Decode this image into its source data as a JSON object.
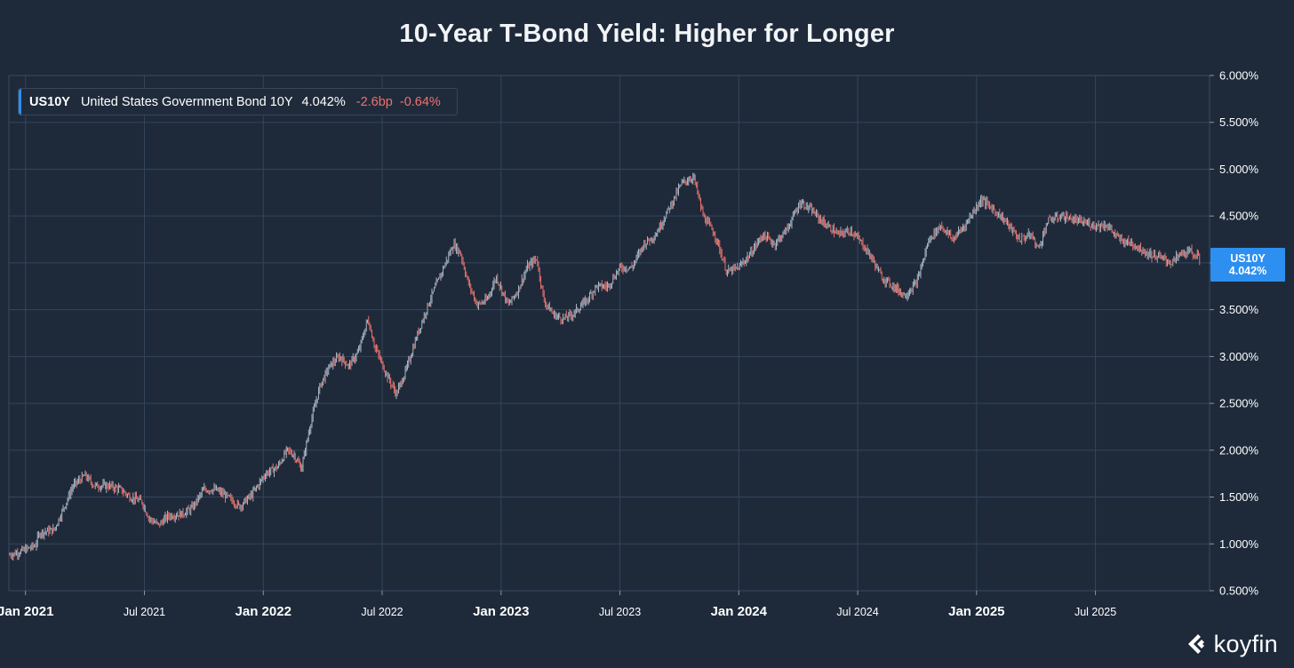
{
  "title": "10-Year T-Bond Yield: Higher for Longer",
  "legend": {
    "symbol": "US10Y",
    "name": "United States Government Bond 10Y",
    "value": "4.042%",
    "change_bp": "-2.6bp",
    "change_pct": "-0.64%"
  },
  "current": {
    "symbol": "US10Y",
    "value": "4.042%"
  },
  "brand": "koyfin",
  "colors": {
    "background": "#1e2a3a",
    "grid": "#33455c",
    "down": "#e4716d",
    "up": "#a6b3c1",
    "accent": "#2d8ff0",
    "negative_text": "#f07070"
  },
  "chart_data": {
    "type": "line",
    "title": "10-Year T-Bond Yield: Higher for Longer",
    "series_name": "US10Y",
    "xlabel": "",
    "ylabel": "",
    "ylim": [
      0.5,
      6.0
    ],
    "yticks": [
      {
        "value": 6.0,
        "label": "6.000%"
      },
      {
        "value": 5.5,
        "label": "5.500%"
      },
      {
        "value": 5.0,
        "label": "5.000%"
      },
      {
        "value": 4.5,
        "label": "4.500%"
      },
      {
        "value": 4.0,
        "label": "4.000%"
      },
      {
        "value": 3.5,
        "label": "3.500%"
      },
      {
        "value": 3.0,
        "label": "3.000%"
      },
      {
        "value": 2.5,
        "label": "2.500%"
      },
      {
        "value": 2.0,
        "label": "2.000%"
      },
      {
        "value": 1.5,
        "label": "1.500%"
      },
      {
        "value": 1.0,
        "label": "1.000%"
      },
      {
        "value": 0.5,
        "label": "0.500%"
      }
    ],
    "xlim": [
      2020.93,
      2025.98
    ],
    "xticks": [
      {
        "t": 2021.0,
        "label": "Jan 2021",
        "major": true
      },
      {
        "t": 2021.5,
        "label": "Jul 2021",
        "major": false
      },
      {
        "t": 2022.0,
        "label": "Jan 2022",
        "major": true
      },
      {
        "t": 2022.5,
        "label": "Jul 2022",
        "major": false
      },
      {
        "t": 2023.0,
        "label": "Jan 2023",
        "major": true
      },
      {
        "t": 2023.5,
        "label": "Jul 2023",
        "major": false
      },
      {
        "t": 2024.0,
        "label": "Jan 2024",
        "major": true
      },
      {
        "t": 2024.5,
        "label": "Jul 2024",
        "major": false
      },
      {
        "t": 2025.0,
        "label": "Jan 2025",
        "major": true
      },
      {
        "t": 2025.5,
        "label": "Jul 2025",
        "major": false
      }
    ],
    "points": [
      [
        2020.93,
        0.88
      ],
      [
        2020.98,
        0.92
      ],
      [
        2021.04,
        0.98
      ],
      [
        2021.06,
        1.12
      ],
      [
        2021.12,
        1.15
      ],
      [
        2021.16,
        1.38
      ],
      [
        2021.2,
        1.62
      ],
      [
        2021.25,
        1.73
      ],
      [
        2021.29,
        1.62
      ],
      [
        2021.35,
        1.62
      ],
      [
        2021.4,
        1.58
      ],
      [
        2021.44,
        1.5
      ],
      [
        2021.49,
        1.45
      ],
      [
        2021.52,
        1.27
      ],
      [
        2021.56,
        1.2
      ],
      [
        2021.6,
        1.3
      ],
      [
        2021.66,
        1.32
      ],
      [
        2021.7,
        1.38
      ],
      [
        2021.75,
        1.58
      ],
      [
        2021.8,
        1.58
      ],
      [
        2021.85,
        1.5
      ],
      [
        2021.9,
        1.4
      ],
      [
        2021.95,
        1.52
      ],
      [
        2022.01,
        1.75
      ],
      [
        2022.06,
        1.82
      ],
      [
        2022.1,
        2.0
      ],
      [
        2022.13,
        1.95
      ],
      [
        2022.16,
        1.8
      ],
      [
        2022.2,
        2.3
      ],
      [
        2022.24,
        2.7
      ],
      [
        2022.28,
        2.9
      ],
      [
        2022.32,
        3.0
      ],
      [
        2022.36,
        2.9
      ],
      [
        2022.4,
        3.05
      ],
      [
        2022.44,
        3.4
      ],
      [
        2022.47,
        3.1
      ],
      [
        2022.52,
        2.8
      ],
      [
        2022.56,
        2.6
      ],
      [
        2022.6,
        2.85
      ],
      [
        2022.65,
        3.25
      ],
      [
        2022.7,
        3.6
      ],
      [
        2022.75,
        3.9
      ],
      [
        2022.8,
        4.2
      ],
      [
        2022.83,
        4.1
      ],
      [
        2022.86,
        3.8
      ],
      [
        2022.9,
        3.55
      ],
      [
        2022.94,
        3.6
      ],
      [
        2022.98,
        3.85
      ],
      [
        2023.03,
        3.55
      ],
      [
        2023.07,
        3.7
      ],
      [
        2023.11,
        3.95
      ],
      [
        2023.15,
        4.05
      ],
      [
        2023.18,
        3.6
      ],
      [
        2023.22,
        3.45
      ],
      [
        2023.26,
        3.4
      ],
      [
        2023.3,
        3.45
      ],
      [
        2023.36,
        3.6
      ],
      [
        2023.4,
        3.75
      ],
      [
        2023.45,
        3.75
      ],
      [
        2023.5,
        3.95
      ],
      [
        2023.55,
        3.95
      ],
      [
        2023.6,
        4.2
      ],
      [
        2023.65,
        4.3
      ],
      [
        2023.7,
        4.55
      ],
      [
        2023.76,
        4.85
      ],
      [
        2023.81,
        4.92
      ],
      [
        2023.85,
        4.5
      ],
      [
        2023.9,
        4.3
      ],
      [
        2023.95,
        3.9
      ],
      [
        2024.0,
        3.95
      ],
      [
        2024.05,
        4.1
      ],
      [
        2024.1,
        4.3
      ],
      [
        2024.15,
        4.2
      ],
      [
        2024.2,
        4.35
      ],
      [
        2024.26,
        4.65
      ],
      [
        2024.31,
        4.55
      ],
      [
        2024.36,
        4.42
      ],
      [
        2024.42,
        4.3
      ],
      [
        2024.47,
        4.35
      ],
      [
        2024.52,
        4.2
      ],
      [
        2024.56,
        4.05
      ],
      [
        2024.6,
        3.85
      ],
      [
        2024.65,
        3.75
      ],
      [
        2024.7,
        3.65
      ],
      [
        2024.75,
        3.8
      ],
      [
        2024.8,
        4.25
      ],
      [
        2024.85,
        4.4
      ],
      [
        2024.9,
        4.25
      ],
      [
        2024.95,
        4.4
      ],
      [
        2025.02,
        4.68
      ],
      [
        2025.08,
        4.55
      ],
      [
        2025.12,
        4.45
      ],
      [
        2025.18,
        4.25
      ],
      [
        2025.23,
        4.3
      ],
      [
        2025.26,
        4.15
      ],
      [
        2025.3,
        4.45
      ],
      [
        2025.36,
        4.5
      ],
      [
        2025.42,
        4.45
      ],
      [
        2025.5,
        4.4
      ],
      [
        2025.55,
        4.4
      ],
      [
        2025.6,
        4.25
      ],
      [
        2025.66,
        4.2
      ],
      [
        2025.72,
        4.1
      ],
      [
        2025.78,
        4.05
      ],
      [
        2025.82,
        4.0
      ],
      [
        2025.86,
        4.1
      ],
      [
        2025.9,
        4.12
      ],
      [
        2025.94,
        4.04
      ]
    ]
  }
}
